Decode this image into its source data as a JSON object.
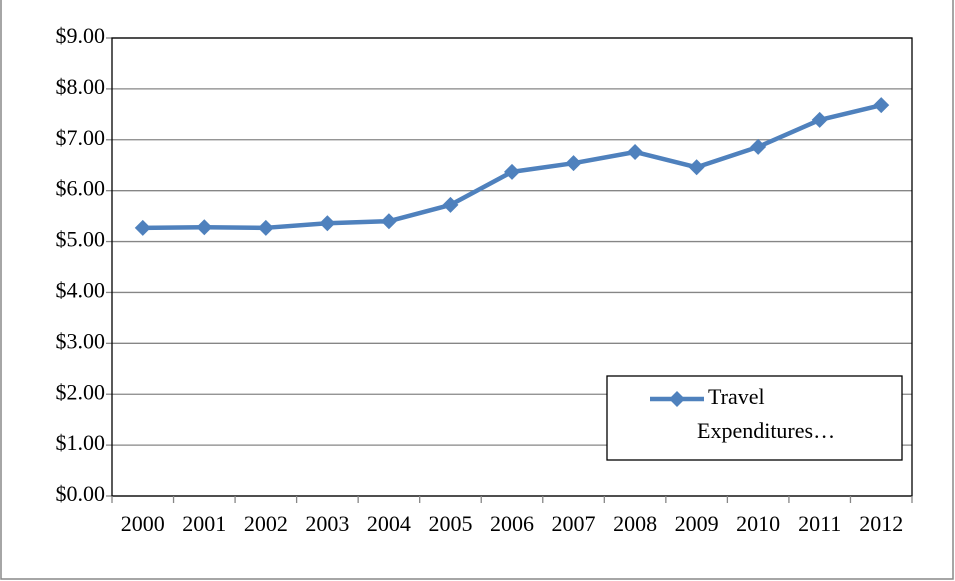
{
  "chart_data": {
    "type": "line",
    "categories": [
      "2000",
      "2001",
      "2002",
      "2003",
      "2004",
      "2005",
      "2006",
      "2007",
      "2008",
      "2009",
      "2010",
      "2011",
      "2012"
    ],
    "series": [
      {
        "name": "Travel Expenditures…",
        "color": "#4f81bd",
        "values": [
          5.27,
          5.28,
          5.27,
          5.36,
          5.4,
          5.72,
          6.37,
          6.54,
          6.76,
          6.46,
          6.86,
          7.39,
          7.68
        ]
      }
    ],
    "ylim": [
      0,
      9
    ],
    "yticks": [
      {
        "value": 0,
        "label": "$0.00"
      },
      {
        "value": 1,
        "label": "$1.00"
      },
      {
        "value": 2,
        "label": "$2.00"
      },
      {
        "value": 3,
        "label": "$3.00"
      },
      {
        "value": 4,
        "label": "$4.00"
      },
      {
        "value": 5,
        "label": "$5.00"
      },
      {
        "value": 6,
        "label": "$6.00"
      },
      {
        "value": 7,
        "label": "$7.00"
      },
      {
        "value": 8,
        "label": "$8.00"
      },
      {
        "value": 9,
        "label": "$9.00"
      }
    ],
    "grid": true,
    "legend": "lower right"
  }
}
